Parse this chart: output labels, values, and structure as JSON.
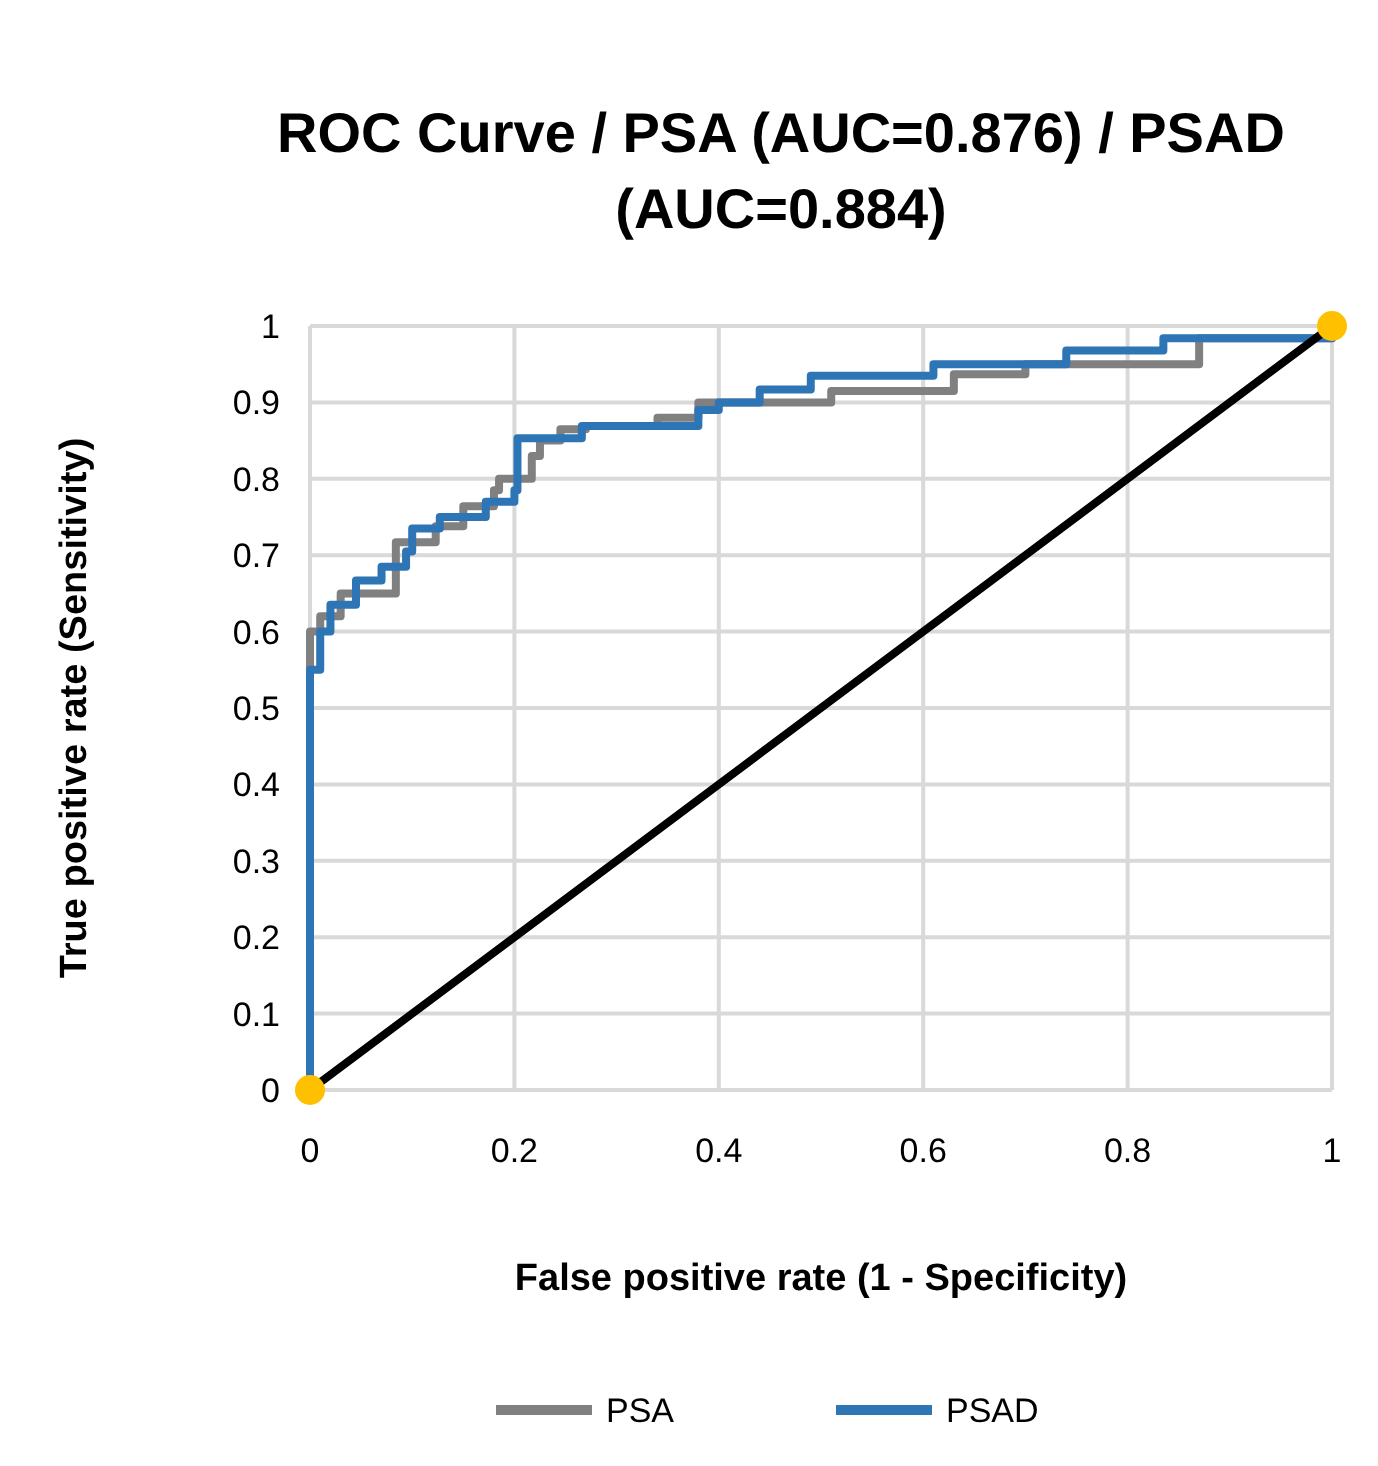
{
  "chart_data": {
    "type": "line",
    "title": "ROC Curve / PSA (AUC=0.876) / PSAD (AUC=0.884)",
    "xlabel": "False positive rate (1 - Specificity)",
    "ylabel": "True positive rate (Sensitivity)",
    "xlim": [
      0,
      1
    ],
    "ylim": [
      0,
      1
    ],
    "xticks": [
      0,
      0.2,
      0.4,
      0.6,
      0.8,
      1
    ],
    "yticks": [
      0,
      0.1,
      0.2,
      0.3,
      0.4,
      0.5,
      0.6,
      0.7,
      0.8,
      0.9,
      1
    ],
    "grid": true,
    "legend": "bottom",
    "marker": "none",
    "series": [
      {
        "name": "PSA",
        "color": "#808080",
        "x": [
          0,
          0,
          0.01,
          0.01,
          0.03,
          0.03,
          0.084,
          0.084,
          0.123,
          0.123,
          0.15,
          0.15,
          0.18,
          0.18,
          0.185,
          0.185,
          0.217,
          0.217,
          0.225,
          0.225,
          0.245,
          0.245,
          0.27,
          0.27,
          0.34,
          0.34,
          0.38,
          0.38,
          0.51,
          0.51,
          0.63,
          0.63,
          0.7,
          0.7,
          0.87,
          0.87,
          1,
          1
        ],
        "values": [
          0,
          0.6,
          0.6,
          0.62,
          0.62,
          0.65,
          0.65,
          0.717,
          0.717,
          0.738,
          0.738,
          0.764,
          0.764,
          0.785,
          0.785,
          0.8,
          0.8,
          0.83,
          0.83,
          0.85,
          0.85,
          0.865,
          0.865,
          0.869,
          0.869,
          0.88,
          0.88,
          0.9,
          0.9,
          0.915,
          0.915,
          0.937,
          0.937,
          0.95,
          0.95,
          0.984,
          0.984,
          1
        ]
      },
      {
        "name": "PSAD",
        "color": "#2e75b6",
        "x": [
          0,
          0,
          0.01,
          0.01,
          0.02,
          0.02,
          0.045,
          0.045,
          0.07,
          0.07,
          0.094,
          0.094,
          0.1,
          0.1,
          0.127,
          0.127,
          0.172,
          0.172,
          0.2,
          0.2,
          0.203,
          0.203,
          0.266,
          0.266,
          0.38,
          0.38,
          0.4,
          0.4,
          0.44,
          0.44,
          0.49,
          0.49,
          0.61,
          0.61,
          0.74,
          0.74,
          0.835,
          0.835,
          1,
          1
        ],
        "values": [
          0,
          0.55,
          0.55,
          0.6,
          0.6,
          0.635,
          0.635,
          0.667,
          0.667,
          0.685,
          0.685,
          0.705,
          0.705,
          0.735,
          0.735,
          0.75,
          0.75,
          0.77,
          0.77,
          0.785,
          0.785,
          0.853,
          0.853,
          0.869,
          0.869,
          0.89,
          0.89,
          0.9,
          0.9,
          0.917,
          0.917,
          0.935,
          0.935,
          0.95,
          0.95,
          0.968,
          0.968,
          0.984,
          0.984,
          1
        ]
      },
      {
        "color": "#000000",
        "x": [
          0,
          1
        ],
        "values": [
          0,
          1
        ]
      },
      {
        "type": "scatter",
        "color": "#ffc000",
        "marker": "circle",
        "x": [
          0,
          1
        ],
        "values": [
          0,
          1
        ]
      }
    ]
  }
}
